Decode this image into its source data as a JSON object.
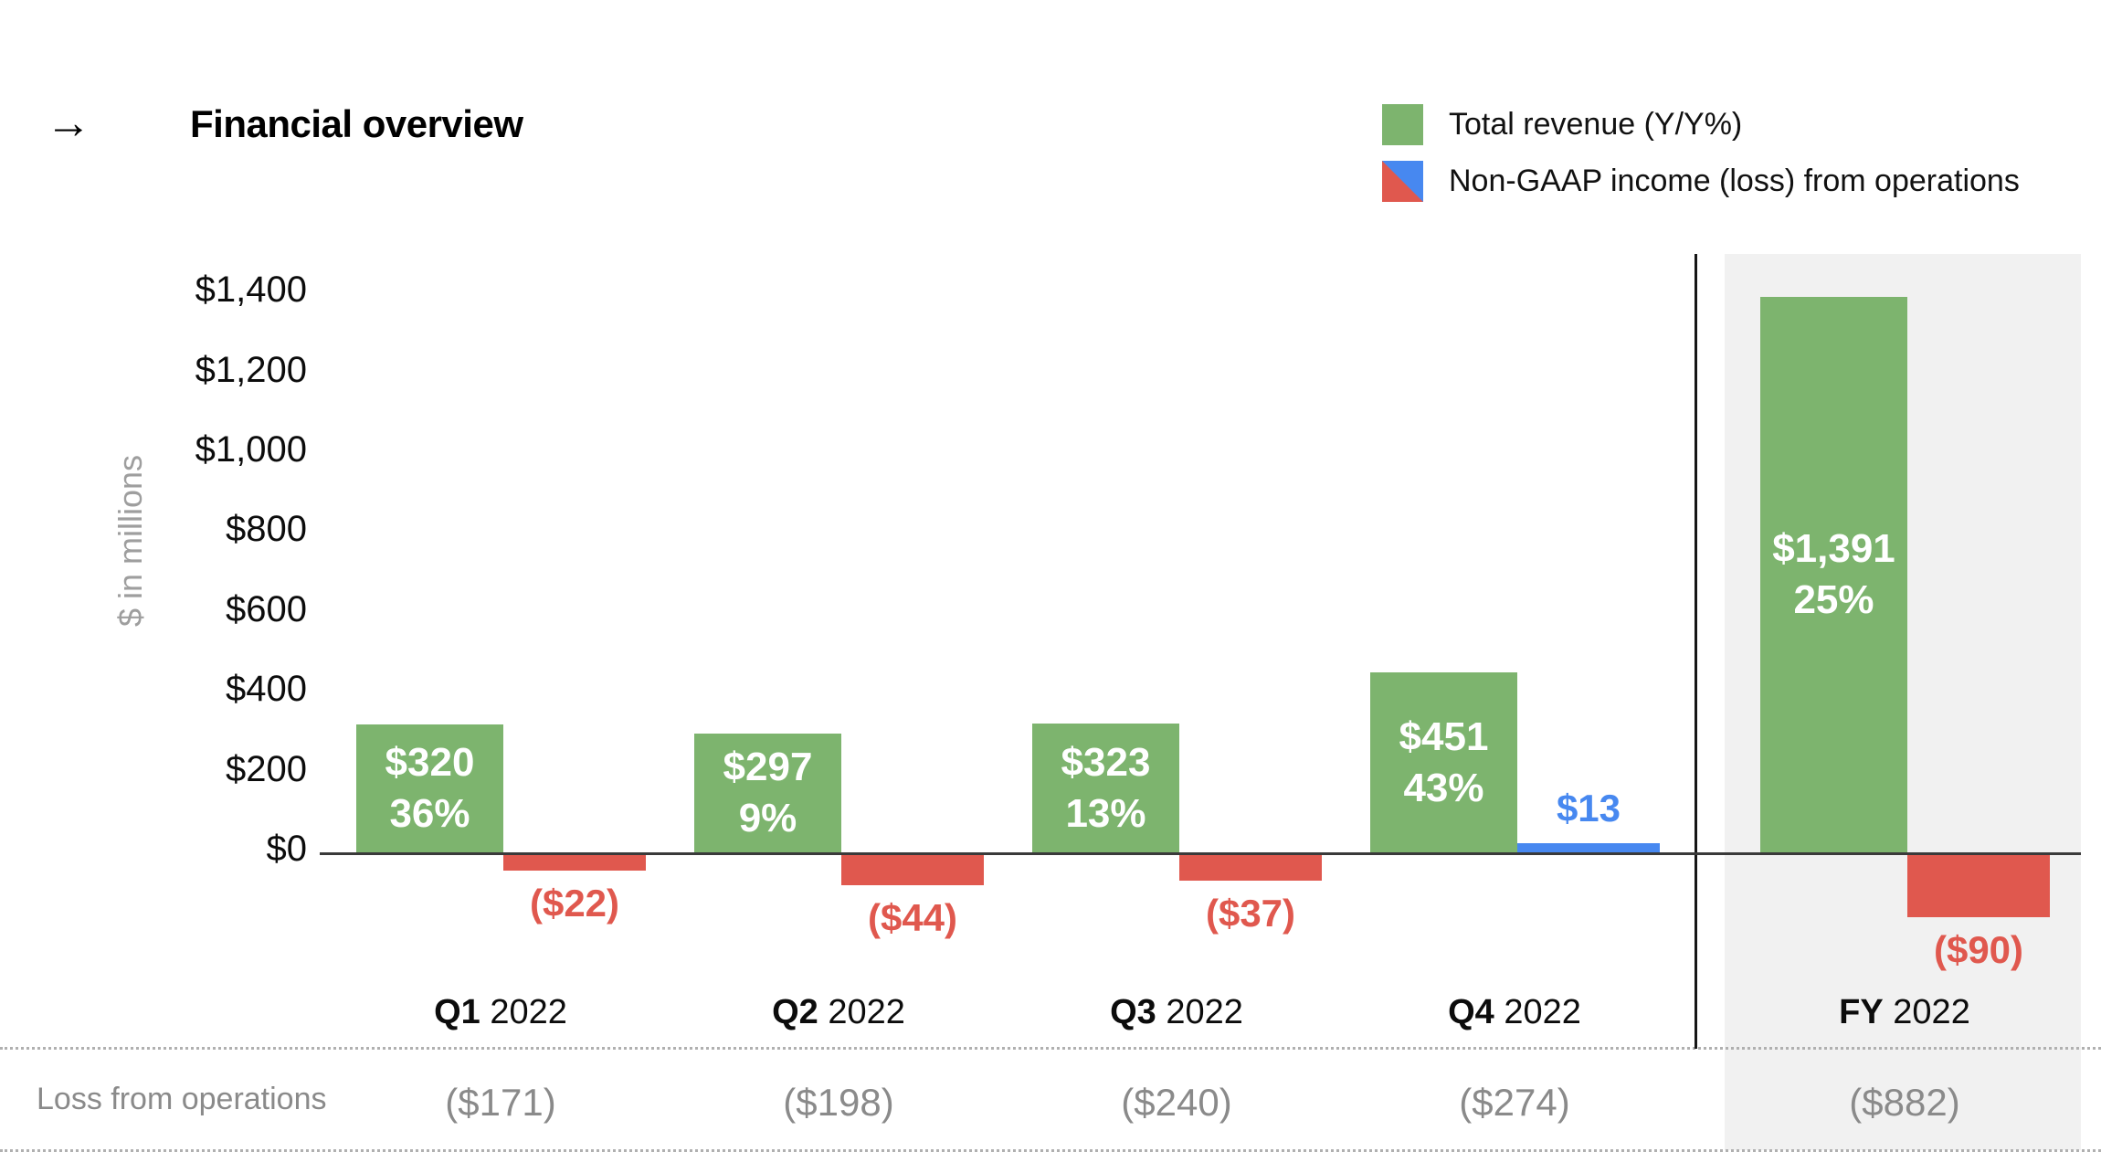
{
  "header": {
    "arrow_glyph": "→",
    "title": "Financial overview"
  },
  "legend": {
    "items": [
      {
        "label": "Total revenue (Y/Y%)"
      },
      {
        "label": "Non-GAAP income (loss) from operations"
      }
    ]
  },
  "colors": {
    "revenue_green": "#7db46e",
    "loss_red": "#e0584e",
    "income_blue": "#4788f0",
    "panel_gray": "#f1f1f1",
    "muted_text": "#8a8a8a",
    "axis_dark": "#3a3a3a"
  },
  "chart_data": {
    "type": "bar",
    "title": "Financial overview",
    "ylabel": "$ in millions",
    "ylim": [
      0,
      1400
    ],
    "y_tick_interval": 200,
    "grid": false,
    "legend_position": "top-right",
    "y_ticks": [
      {
        "label": "$1,400",
        "value": 1400
      },
      {
        "label": "$1,200",
        "value": 1200
      },
      {
        "label": "$1,000",
        "value": 1000
      },
      {
        "label": "$800",
        "value": 800
      },
      {
        "label": "$600",
        "value": 600
      },
      {
        "label": "$400",
        "value": 400
      },
      {
        "label": "$200",
        "value": 200
      },
      {
        "label": "$0",
        "value": 0
      }
    ],
    "categories": [
      {
        "prefix": "Q1",
        "year": "2022"
      },
      {
        "prefix": "Q2",
        "year": "2022"
      },
      {
        "prefix": "Q3",
        "year": "2022"
      },
      {
        "prefix": "Q4",
        "year": "2022"
      },
      {
        "prefix": "FY",
        "year": "2022"
      }
    ],
    "series": [
      {
        "name": "Total revenue (Y/Y%)",
        "color": "#7db46e",
        "points": [
          {
            "value": 320,
            "amount_label": "$320",
            "growth_label": "36%"
          },
          {
            "value": 297,
            "amount_label": "$297",
            "growth_label": "9%"
          },
          {
            "value": 323,
            "amount_label": "$323",
            "growth_label": "13%"
          },
          {
            "value": 451,
            "amount_label": "$451",
            "growth_label": "43%"
          },
          {
            "value": 1391,
            "amount_label": "$1,391",
            "growth_label": "25%"
          }
        ]
      },
      {
        "name": "Non-GAAP income (loss) from operations",
        "color_positive": "#4788f0",
        "color_negative": "#e0584e",
        "points": [
          {
            "value": -22,
            "label": "($22)"
          },
          {
            "value": -44,
            "label": "($44)"
          },
          {
            "value": -37,
            "label": "($37)"
          },
          {
            "value": 13,
            "label": "$13"
          },
          {
            "value": -90,
            "label": "($90)"
          }
        ]
      }
    ]
  },
  "table": {
    "row_label": "Loss from operations",
    "values": [
      "($171)",
      "($198)",
      "($240)",
      "($274)",
      "($882)"
    ]
  }
}
